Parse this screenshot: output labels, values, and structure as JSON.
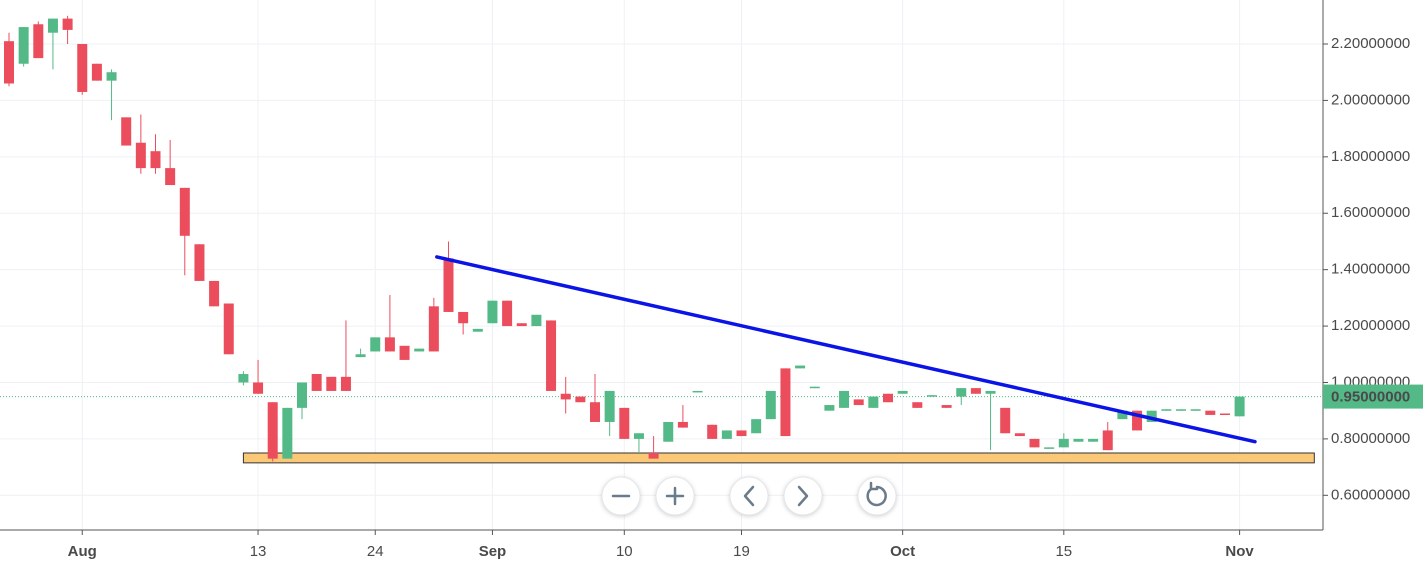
{
  "chart_data": {
    "type": "candlestick",
    "categories": [
      null,
      null,
      null,
      null,
      null,
      "Aug",
      null,
      null,
      null,
      null,
      null,
      null,
      null,
      null,
      null,
      null,
      null,
      "13",
      null,
      null,
      null,
      null,
      null,
      null,
      null,
      "24",
      null,
      null,
      null,
      null,
      null,
      null,
      null,
      "Sep",
      null,
      null,
      null,
      null,
      null,
      null,
      null,
      null,
      "10",
      null,
      null,
      null,
      null,
      null,
      null,
      null,
      "19",
      null,
      null,
      null,
      null,
      null,
      null,
      null,
      null,
      null,
      null,
      "Oct",
      null,
      null,
      null,
      null,
      null,
      null,
      null,
      null,
      null,
      null,
      "15",
      null,
      null,
      null,
      null,
      null,
      null,
      null,
      null,
      null,
      null,
      null,
      "Nov"
    ],
    "open": [
      2.21,
      2.13,
      2.27,
      2.24,
      2.29,
      2.2,
      2.13,
      2.07,
      1.94,
      1.85,
      1.82,
      1.76,
      1.69,
      1.49,
      1.36,
      1.28,
      1.0,
      1.0,
      0.93,
      0.73,
      0.91,
      1.03,
      1.02,
      1.02,
      1.09,
      1.11,
      1.16,
      1.13,
      1.11,
      1.27,
      1.44,
      1.25,
      1.18,
      1.21,
      1.29,
      1.21,
      1.2,
      1.22,
      0.96,
      0.95,
      0.93,
      0.86,
      0.91,
      0.8,
      0.75,
      0.79,
      0.86,
      0.965,
      0.85,
      0.8,
      0.83,
      0.82,
      0.87,
      1.05,
      1.05,
      0.98,
      0.9,
      0.91,
      0.94,
      0.91,
      0.96,
      0.96,
      0.93,
      0.95,
      0.92,
      0.95,
      0.98,
      0.96,
      0.91,
      0.82,
      0.8,
      0.765,
      0.77,
      0.79,
      0.79,
      0.83,
      0.87,
      0.9,
      0.86,
      0.9,
      0.9,
      0.9,
      0.9,
      0.89,
      0.88
    ],
    "high": [
      2.24,
      2.26,
      2.28,
      2.29,
      2.3,
      2.2,
      2.13,
      2.11,
      1.94,
      1.95,
      1.88,
      1.86,
      1.69,
      1.49,
      1.36,
      1.28,
      1.04,
      1.08,
      0.93,
      0.91,
      1.0,
      1.03,
      1.02,
      1.22,
      1.12,
      1.16,
      1.31,
      1.13,
      1.12,
      1.3,
      1.5,
      1.25,
      1.19,
      1.29,
      1.29,
      1.21,
      1.24,
      1.22,
      1.02,
      0.95,
      1.03,
      0.97,
      0.91,
      0.82,
      0.81,
      0.86,
      0.92,
      0.97,
      0.85,
      0.83,
      0.83,
      0.87,
      0.97,
      1.05,
      1.06,
      0.985,
      0.92,
      0.97,
      0.94,
      0.95,
      0.96,
      0.97,
      0.93,
      0.955,
      0.92,
      0.98,
      0.98,
      0.97,
      0.91,
      0.82,
      0.8,
      0.77,
      0.82,
      0.8,
      0.8,
      0.86,
      0.9,
      0.9,
      0.9,
      0.905,
      0.905,
      0.905,
      0.9,
      0.89,
      0.95
    ],
    "low": [
      2.05,
      2.12,
      2.15,
      2.11,
      2.2,
      2.02,
      2.07,
      1.93,
      1.84,
      1.74,
      1.74,
      1.7,
      1.38,
      1.36,
      1.27,
      1.1,
      0.99,
      0.96,
      0.72,
      0.73,
      0.87,
      0.97,
      0.97,
      0.97,
      1.09,
      1.11,
      1.11,
      1.08,
      1.11,
      1.11,
      1.25,
      1.17,
      1.18,
      1.21,
      1.2,
      1.2,
      1.2,
      0.97,
      0.89,
      0.93,
      0.86,
      0.81,
      0.8,
      0.75,
      0.73,
      0.79,
      0.84,
      0.965,
      0.8,
      0.8,
      0.81,
      0.82,
      0.87,
      0.81,
      1.05,
      0.98,
      0.9,
      0.91,
      0.92,
      0.91,
      0.93,
      0.96,
      0.91,
      0.95,
      0.91,
      0.92,
      0.96,
      0.76,
      0.82,
      0.81,
      0.77,
      0.765,
      0.77,
      0.79,
      0.79,
      0.76,
      0.87,
      0.83,
      0.86,
      0.9,
      0.9,
      0.9,
      0.885,
      0.885,
      0.88
    ],
    "close": [
      2.06,
      2.26,
      2.15,
      2.29,
      2.25,
      2.03,
      2.07,
      2.1,
      1.84,
      1.76,
      1.76,
      1.7,
      1.52,
      1.36,
      1.27,
      1.1,
      1.03,
      0.96,
      0.73,
      0.91,
      1.0,
      0.97,
      0.97,
      0.97,
      1.1,
      1.16,
      1.11,
      1.08,
      1.12,
      1.11,
      1.25,
      1.21,
      1.19,
      1.29,
      1.2,
      1.2,
      1.24,
      0.97,
      0.94,
      0.93,
      0.86,
      0.97,
      0.8,
      0.82,
      0.73,
      0.86,
      0.84,
      0.97,
      0.8,
      0.83,
      0.81,
      0.87,
      0.97,
      0.81,
      1.06,
      0.985,
      0.92,
      0.97,
      0.92,
      0.95,
      0.93,
      0.97,
      0.91,
      0.955,
      0.91,
      0.98,
      0.96,
      0.97,
      0.82,
      0.81,
      0.77,
      0.77,
      0.8,
      0.8,
      0.8,
      0.76,
      0.9,
      0.83,
      0.9,
      0.905,
      0.905,
      0.905,
      0.885,
      0.885,
      0.95
    ],
    "up_color": "#53b987",
    "down_color": "#eb4d5c",
    "ylim": [
      0.477,
      2.356
    ],
    "yticks": [
      {
        "value": 0.6,
        "label": "0.60000000"
      },
      {
        "value": 0.8,
        "label": "0.80000000"
      },
      {
        "value": 1.0,
        "label": "1.00000000"
      },
      {
        "value": 1.2,
        "label": "1.20000000"
      },
      {
        "value": 1.4,
        "label": "1.40000000"
      },
      {
        "value": 1.6,
        "label": "1.60000000"
      },
      {
        "value": 1.8,
        "label": "1.80000000"
      },
      {
        "value": 2.0,
        "label": "2.00000000"
      },
      {
        "value": 2.2,
        "label": "2.20000000"
      }
    ],
    "grid": true,
    "last_price": {
      "value": 0.95,
      "label": "0.95000000",
      "color": "#53b987"
    },
    "trendline": {
      "color": "#0a14e6",
      "x": [
        29.2,
        85.05
      ],
      "y": [
        1.445,
        0.79
      ]
    },
    "support_zone": {
      "color": "#fbc878",
      "x": [
        16.0,
        89.1
      ],
      "y": [
        0.715,
        0.75
      ]
    }
  }
}
